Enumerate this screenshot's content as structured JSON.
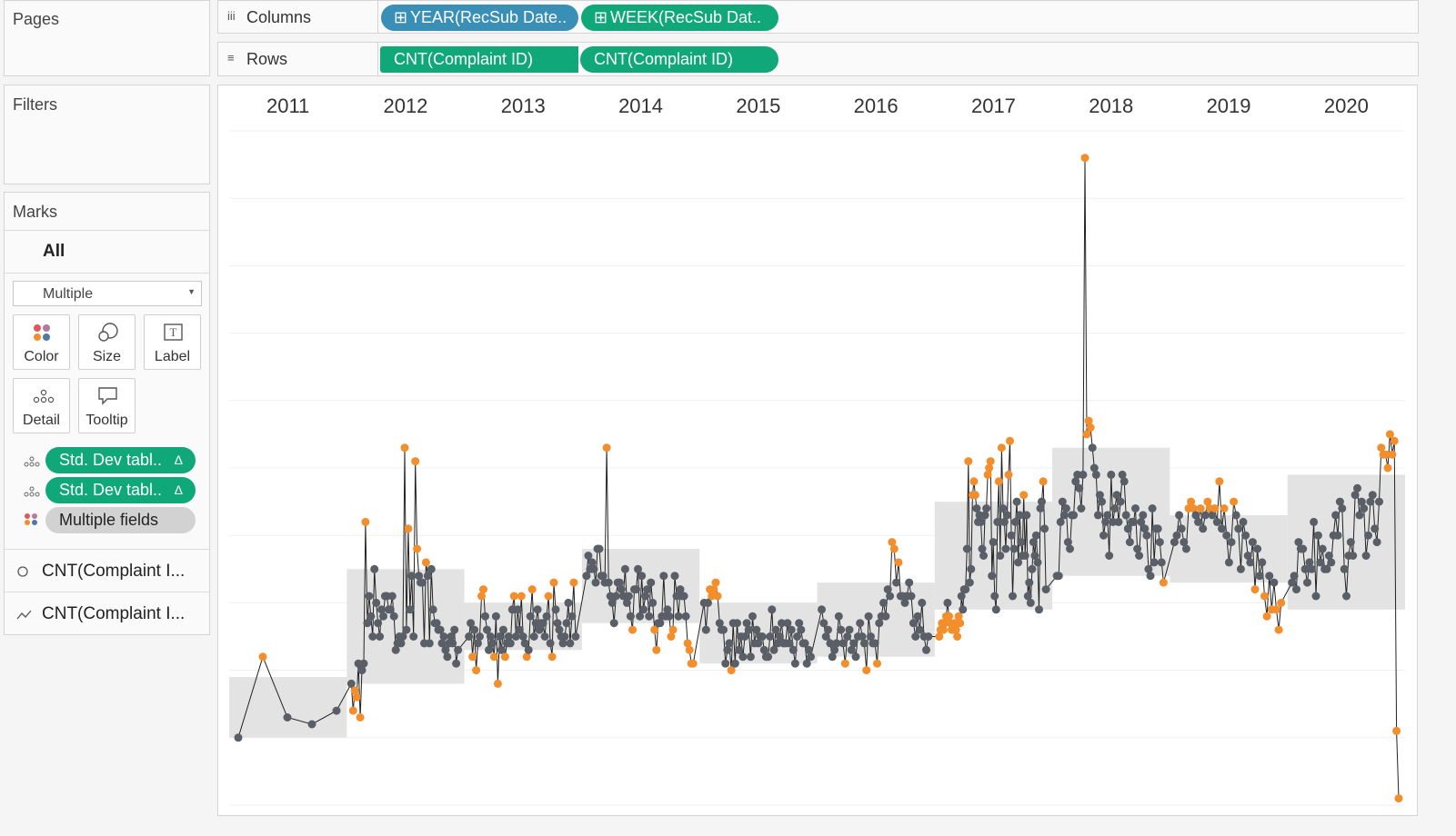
{
  "left_panel": {
    "pages_title": "Pages",
    "filters_title": "Filters",
    "marks_title": "Marks",
    "marks_all": "All",
    "mark_type": "Multiple",
    "buttons": [
      {
        "label": "Color",
        "icon": "color-icon"
      },
      {
        "label": "Size",
        "icon": "size-icon"
      },
      {
        "label": "Label",
        "icon": "label-icon"
      },
      {
        "label": "Detail",
        "icon": "detail-icon"
      },
      {
        "label": "Tooltip",
        "icon": "tooltip-icon"
      }
    ],
    "mark_pills": [
      {
        "label": "Std. Dev tabl..",
        "suffix": "Δ"
      },
      {
        "label": "Std. Dev tabl..",
        "suffix": "Δ"
      },
      {
        "label": "Multiple fields",
        "suffix": ""
      }
    ],
    "mark_layers": [
      {
        "label": "CNT(Complaint I...",
        "icon": "circle-mark-icon"
      },
      {
        "label": "CNT(Complaint I...",
        "icon": "line-mark-icon"
      }
    ]
  },
  "shelves": {
    "columns_label": "Columns",
    "rows_label": "Rows",
    "columns_pills": [
      "YEAR(RecSub Date..",
      "WEEK(RecSub Dat.."
    ],
    "rows_pills": [
      "CNT(Complaint ID)",
      "CNT(Complaint ID)"
    ]
  },
  "colors": {
    "in_band": "#5a5e66",
    "outlier": "#f28e2b",
    "band": "#e3e3e3",
    "pill_green": "#10a878",
    "pill_blue": "#3a8fb7"
  },
  "chart_data": {
    "type": "line",
    "title": "",
    "xlabel": "",
    "ylabel": "",
    "grid": true,
    "columns": [
      "2011",
      "2012",
      "2013",
      "2014",
      "2015",
      "2016",
      "2017",
      "2018",
      "2019",
      "2020"
    ],
    "bands": [
      {
        "year": "2011",
        "lower": 0.1,
        "upper": 0.19
      },
      {
        "year": "2012",
        "lower": 0.18,
        "upper": 0.35
      },
      {
        "year": "2013",
        "lower": 0.23,
        "upper": 0.3
      },
      {
        "year": "2014",
        "lower": 0.27,
        "upper": 0.38
      },
      {
        "year": "2015",
        "lower": 0.21,
        "upper": 0.3
      },
      {
        "year": "2016",
        "lower": 0.22,
        "upper": 0.33
      },
      {
        "year": "2017",
        "lower": 0.29,
        "upper": 0.45
      },
      {
        "year": "2018",
        "lower": 0.34,
        "upper": 0.53
      },
      {
        "year": "2019",
        "lower": 0.33,
        "upper": 0.43
      },
      {
        "year": "2020",
        "lower": 0.29,
        "upper": 0.49
      }
    ],
    "series": [
      {
        "year": "2011",
        "values": [
          0.1,
          0.22,
          0.13,
          0.12,
          0.14
        ]
      },
      {
        "year": "2012",
        "values": [
          0.18,
          0.14,
          0.17,
          0.16,
          0.21,
          0.13,
          0.2,
          0.21,
          0.42,
          0.27,
          0.31,
          0.28,
          0.25,
          0.35,
          0.3,
          0.27,
          0.25,
          0.29,
          0.28,
          0.31,
          0.31,
          0.29,
          0.29,
          0.31,
          0.28,
          0.23,
          0.24,
          0.25,
          0.24,
          0.25,
          0.53,
          0.26,
          0.41,
          0.29,
          0.34,
          0.25,
          0.51,
          0.38,
          0.34,
          0.33,
          0.33,
          0.24,
          0.36,
          0.34,
          0.24,
          0.35,
          0.29,
          0.27,
          0.27,
          0.26,
          0.26,
          0.24,
          0.25,
          0.23,
          0.22,
          0.24,
          0.25,
          0.24,
          0.26,
          0.21,
          0.23
        ]
      },
      {
        "year": "2013",
        "values": [
          0.25,
          0.27,
          0.22,
          0.26,
          0.2,
          0.24,
          0.25,
          0.31,
          0.32,
          0.28,
          0.26,
          0.23,
          0.25,
          0.24,
          0.22,
          0.28,
          0.18,
          0.25,
          0.23,
          0.26,
          0.22,
          0.24,
          0.25,
          0.24,
          0.29,
          0.31,
          0.25,
          0.29,
          0.26,
          0.31,
          0.25,
          0.24,
          0.22,
          0.23,
          0.28,
          0.32,
          0.25,
          0.27,
          0.29,
          0.26,
          0.27,
          0.27,
          0.25,
          0.28,
          0.31,
          0.24,
          0.22,
          0.33,
          0.29,
          0.27,
          0.26,
          0.25,
          0.24,
          0.25,
          0.27,
          0.3,
          0.24,
          0.28,
          0.33,
          0.25
        ]
      },
      {
        "year": "2014",
        "values": [
          0.34,
          0.37,
          0.35,
          0.36,
          0.35,
          0.33,
          0.38,
          0.38,
          0.34,
          0.34,
          0.33,
          0.53,
          0.33,
          0.31,
          0.3,
          0.27,
          0.31,
          0.33,
          0.33,
          0.32,
          0.31,
          0.35,
          0.3,
          0.31,
          0.28,
          0.26,
          0.32,
          0.32,
          0.35,
          0.28,
          0.34,
          0.29,
          0.31,
          0.32,
          0.28,
          0.33,
          0.3,
          0.26,
          0.23,
          0.27,
          0.27,
          0.28,
          0.34,
          0.28,
          0.29,
          0.28,
          0.25,
          0.26,
          0.34,
          0.31,
          0.28,
          0.32,
          0.31,
          0.31,
          0.28,
          0.24,
          0.23,
          0.21,
          0.21
        ]
      },
      {
        "year": "2015",
        "values": [
          0.3,
          0.26,
          0.3,
          0.32,
          0.31,
          0.32,
          0.33,
          0.31,
          0.27,
          0.26,
          0.26,
          0.21,
          0.23,
          0.24,
          0.2,
          0.27,
          0.21,
          0.27,
          0.23,
          0.25,
          0.22,
          0.25,
          0.27,
          0.26,
          0.22,
          0.28,
          0.24,
          0.26,
          0.24,
          0.25,
          0.25,
          0.23,
          0.22,
          0.22,
          0.25,
          0.29,
          0.23,
          0.26,
          0.24,
          0.25,
          0.27,
          0.24,
          0.24,
          0.27,
          0.24,
          0.26,
          0.23,
          0.21,
          0.25,
          0.27,
          0.26,
          0.24,
          0.24,
          0.21,
          0.23,
          0.22
        ]
      },
      {
        "year": "2016",
        "values": [
          0.29,
          0.27,
          0.25,
          0.26,
          0.24,
          0.22,
          0.23,
          0.24,
          0.28,
          0.26,
          0.24,
          0.21,
          0.25,
          0.26,
          0.23,
          0.24,
          0.22,
          0.25,
          0.27,
          0.25,
          0.24,
          0.2,
          0.28,
          0.25,
          0.24,
          0.24,
          0.21,
          0.27,
          0.28,
          0.3,
          0.28,
          0.32,
          0.31,
          0.39,
          0.38,
          0.33,
          0.36,
          0.31,
          0.31,
          0.3,
          0.31,
          0.33,
          0.31,
          0.27,
          0.25,
          0.28,
          0.26,
          0.3,
          0.25,
          0.23,
          0.25
        ]
      },
      {
        "year": "2017",
        "values": [
          0.25,
          0.26,
          0.27,
          0.26,
          0.27,
          0.28,
          0.3,
          0.28,
          0.27,
          0.26,
          0.26,
          0.27,
          0.26,
          0.25,
          0.28,
          0.27,
          0.31,
          0.29,
          0.32,
          0.32,
          0.38,
          0.51,
          0.33,
          0.35,
          0.46,
          0.48,
          0.46,
          0.44,
          0.42,
          0.43,
          0.42,
          0.38,
          0.37,
          0.43,
          0.44,
          0.49,
          0.5,
          0.51,
          0.34,
          0.39,
          0.31,
          0.29,
          0.42,
          0.48,
          0.37,
          0.53,
          0.44,
          0.42,
          0.38,
          0.43,
          0.49,
          0.54,
          0.4,
          0.31,
          0.38,
          0.42,
          0.45,
          0.36,
          0.43,
          0.39,
          0.37,
          0.46,
          0.37,
          0.43,
          0.31,
          0.33,
          0.3,
          0.35,
          0.39,
          0.37,
          0.4,
          0.36,
          0.29,
          0.44,
          0.45,
          0.48,
          0.41,
          0.32
        ]
      },
      {
        "year": "2018",
        "values": [
          0.34,
          0.34,
          0.42,
          0.45,
          0.43,
          0.44,
          0.39,
          0.38,
          0.43,
          0.43,
          0.48,
          0.49,
          0.47,
          0.44,
          0.49,
          0.96,
          0.55,
          0.57,
          0.56,
          0.53,
          0.5,
          0.49,
          0.43,
          0.46,
          0.45,
          0.4,
          0.42,
          0.43,
          0.37,
          0.49,
          0.42,
          0.44,
          0.46,
          0.42,
          0.45,
          0.49,
          0.48,
          0.43,
          0.41,
          0.39,
          0.42,
          0.42,
          0.44,
          0.38,
          0.37,
          0.42,
          0.43,
          0.41,
          0.4,
          0.35,
          0.34,
          0.44,
          0.36,
          0.41,
          0.41,
          0.39,
          0.36,
          0.33
        ]
      },
      {
        "year": "2019",
        "values": [
          0.39,
          0.4,
          0.43,
          0.41,
          0.39,
          0.38,
          0.44,
          0.45,
          0.44,
          0.43,
          0.42,
          0.44,
          0.41,
          0.43,
          0.45,
          0.44,
          0.43,
          0.44,
          0.42,
          0.48,
          0.41,
          0.44,
          0.4,
          0.36,
          0.39,
          0.45,
          0.43,
          0.41,
          0.35,
          0.42,
          0.4,
          0.37,
          0.36,
          0.39,
          0.32,
          0.38,
          0.34,
          0.36,
          0.31,
          0.28,
          0.34,
          0.29,
          0.33,
          0.29,
          0.26,
          0.3
        ]
      },
      {
        "year": "2020",
        "values": [
          0.33,
          0.34,
          0.32,
          0.39,
          0.38,
          0.38,
          0.35,
          0.33,
          0.36,
          0.35,
          0.42,
          0.31,
          0.4,
          0.36,
          0.38,
          0.35,
          0.35,
          0.37,
          0.36,
          0.4,
          0.43,
          0.4,
          0.45,
          0.44,
          0.35,
          0.31,
          0.37,
          0.39,
          0.37,
          0.46,
          0.47,
          0.43,
          0.45,
          0.44,
          0.37,
          0.4,
          0.45,
          0.46,
          0.41,
          0.39,
          0.45,
          0.53,
          0.52,
          0.52,
          0.5,
          0.55,
          0.52,
          0.54,
          0.11,
          0.01
        ]
      }
    ]
  }
}
